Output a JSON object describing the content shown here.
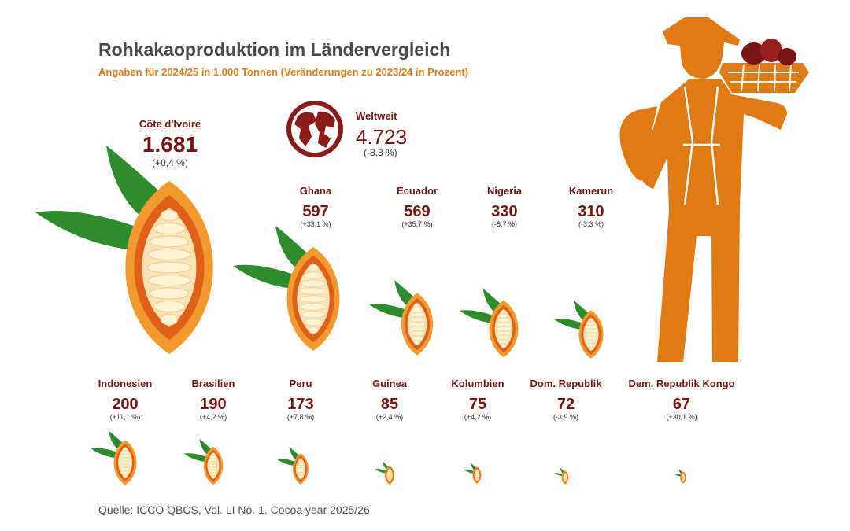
{
  "header": {
    "title": "Rohkakaoproduktion im Ländervergleich",
    "subtitle": "Angaben für 2024/25 in 1.000 Tonnen (Veränderungen zu 2023/24 in Prozent)"
  },
  "world": {
    "label": "Weltweit",
    "value": "4.723",
    "change": "(-8,3 %)"
  },
  "source": "Quelle: ICCO QBCS, Vol. LI No. 1, Cocoa year 2025/26",
  "colors": {
    "accent": "#e07a14",
    "dark_red": "#7a1414",
    "leaf": "#2e8b2e",
    "pod": "#f08a1e"
  },
  "chart_data": {
    "type": "pictogram",
    "title": "Rohkakaoproduktion im Ländervergleich",
    "subtitle": "Angaben für 2024/25 in 1.000 Tonnen (Veränderungen zu 2023/24 in Prozent)",
    "unit": "1.000 Tonnen",
    "total": {
      "name": "Weltweit",
      "value": 4723,
      "change_pct": -8.3
    },
    "categories": [
      "Côte d'Ivoire",
      "Ghana",
      "Ecuador",
      "Nigeria",
      "Kamerun",
      "Indonesien",
      "Brasilien",
      "Peru",
      "Guinea",
      "Kolumbien",
      "Dom. Republik",
      "Dem. Republik Kongo"
    ],
    "values": [
      1681,
      597,
      569,
      330,
      310,
      200,
      190,
      173,
      85,
      75,
      72,
      67
    ],
    "value_labels": [
      "1.681",
      "597",
      "569",
      "330",
      "310",
      "200",
      "190",
      "173",
      "85",
      "75",
      "72",
      "67"
    ],
    "changes": [
      "(+0,4 %)",
      "(+33,1 %)",
      "(+35,7 %)",
      "(-5,7 %)",
      "(-3,3 %)",
      "(+11,1 %)",
      "(+4,2 %)",
      "(+7,8 %)",
      "(+2,4 %)",
      "(+4,2 %)",
      "(-3,9 %)",
      "(+30,1 %)"
    ]
  }
}
